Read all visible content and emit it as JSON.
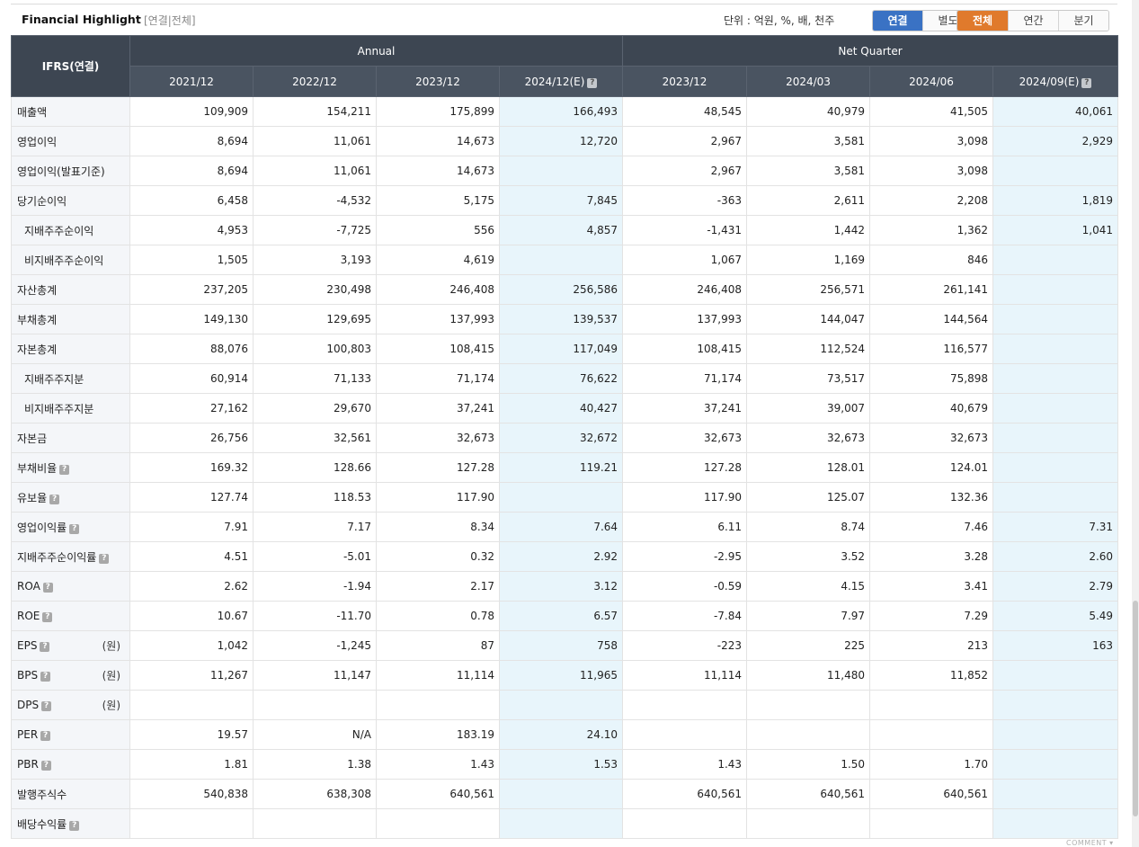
{
  "header": {
    "title": "Financial Highlight",
    "subtitle": "[연결|전체]",
    "unit": "단위 : 억원, %, 배, 천주",
    "scope_buttons": [
      "연결",
      "별도"
    ],
    "period_buttons": [
      "전체",
      "연간",
      "분기"
    ]
  },
  "table": {
    "corner": "IFRS(연결)",
    "group_annual": "Annual",
    "group_quarter": "Net Quarter",
    "columns": [
      "2021/12",
      "2022/12",
      "2023/12",
      "2024/12(E)",
      "2023/12",
      "2024/03",
      "2024/06",
      "2024/09(E)"
    ],
    "rows": [
      {
        "label": "매출액",
        "values": [
          "109,909",
          "154,211",
          "175,899",
          "166,493",
          "48,545",
          "40,979",
          "41,505",
          "40,061"
        ]
      },
      {
        "label": "영업이익",
        "values": [
          "8,694",
          "11,061",
          "14,673",
          "12,720",
          "2,967",
          "3,581",
          "3,098",
          "2,929"
        ]
      },
      {
        "label": "영업이익(발표기준)",
        "values": [
          "8,694",
          "11,061",
          "14,673",
          "",
          "2,967",
          "3,581",
          "3,098",
          ""
        ]
      },
      {
        "label": "당기순이익",
        "values": [
          "6,458",
          "-4,532",
          "5,175",
          "7,845",
          "-363",
          "2,611",
          "2,208",
          "1,819"
        ]
      },
      {
        "label": "지배주주순이익",
        "indent": true,
        "values": [
          "4,953",
          "-7,725",
          "556",
          "4,857",
          "-1,431",
          "1,442",
          "1,362",
          "1,041"
        ]
      },
      {
        "label": "비지배주주순이익",
        "indent": true,
        "values": [
          "1,505",
          "3,193",
          "4,619",
          "",
          "1,067",
          "1,169",
          "846",
          ""
        ]
      },
      {
        "label": "자산총계",
        "values": [
          "237,205",
          "230,498",
          "246,408",
          "256,586",
          "246,408",
          "256,571",
          "261,141",
          ""
        ]
      },
      {
        "label": "부채총계",
        "values": [
          "149,130",
          "129,695",
          "137,993",
          "139,537",
          "137,993",
          "144,047",
          "144,564",
          ""
        ]
      },
      {
        "label": "자본총계",
        "values": [
          "88,076",
          "100,803",
          "108,415",
          "117,049",
          "108,415",
          "112,524",
          "116,577",
          ""
        ]
      },
      {
        "label": "지배주주지분",
        "indent": true,
        "values": [
          "60,914",
          "71,133",
          "71,174",
          "76,622",
          "71,174",
          "73,517",
          "75,898",
          ""
        ]
      },
      {
        "label": "비지배주주지분",
        "indent": true,
        "values": [
          "27,162",
          "29,670",
          "37,241",
          "40,427",
          "37,241",
          "39,007",
          "40,679",
          ""
        ]
      },
      {
        "label": "자본금",
        "values": [
          "26,756",
          "32,561",
          "32,673",
          "32,672",
          "32,673",
          "32,673",
          "32,673",
          ""
        ]
      },
      {
        "label": "부채비율",
        "help": true,
        "values": [
          "169.32",
          "128.66",
          "127.28",
          "119.21",
          "127.28",
          "128.01",
          "124.01",
          ""
        ]
      },
      {
        "label": "유보율",
        "help": true,
        "values": [
          "127.74",
          "118.53",
          "117.90",
          "",
          "117.90",
          "125.07",
          "132.36",
          ""
        ]
      },
      {
        "label": "영업이익률",
        "help": true,
        "values": [
          "7.91",
          "7.17",
          "8.34",
          "7.64",
          "6.11",
          "8.74",
          "7.46",
          "7.31"
        ]
      },
      {
        "label": "지배주주순이익률",
        "help": true,
        "values": [
          "4.51",
          "-5.01",
          "0.32",
          "2.92",
          "-2.95",
          "3.52",
          "3.28",
          "2.60"
        ]
      },
      {
        "label": "ROA",
        "help": true,
        "values": [
          "2.62",
          "-1.94",
          "2.17",
          "3.12",
          "-0.59",
          "4.15",
          "3.41",
          "2.79"
        ]
      },
      {
        "label": "ROE",
        "help": true,
        "values": [
          "10.67",
          "-11.70",
          "0.78",
          "6.57",
          "-7.84",
          "7.97",
          "7.29",
          "5.49"
        ]
      },
      {
        "label": "EPS",
        "help": true,
        "unit": "(원)",
        "values": [
          "1,042",
          "-1,245",
          "87",
          "758",
          "-223",
          "225",
          "213",
          "163"
        ]
      },
      {
        "label": "BPS",
        "help": true,
        "unit": "(원)",
        "values": [
          "11,267",
          "11,147",
          "11,114",
          "11,965",
          "11,114",
          "11,480",
          "11,852",
          ""
        ]
      },
      {
        "label": "DPS",
        "help": true,
        "unit": "(원)",
        "values": [
          "",
          "",
          "",
          "",
          "",
          "",
          "",
          ""
        ]
      },
      {
        "label": "PER",
        "help": true,
        "values": [
          "19.57",
          "N/A",
          "183.19",
          "24.10",
          "",
          "",
          "",
          ""
        ]
      },
      {
        "label": "PBR",
        "help": true,
        "values": [
          "1.81",
          "1.38",
          "1.43",
          "1.53",
          "1.43",
          "1.50",
          "1.70",
          ""
        ]
      },
      {
        "label": "발행주식수",
        "values": [
          "540,838",
          "638,308",
          "640,561",
          "",
          "640,561",
          "640,561",
          "640,561",
          ""
        ]
      },
      {
        "label": "배당수익률",
        "help": true,
        "values": [
          "",
          "",
          "",
          "",
          "",
          "",
          "",
          ""
        ]
      }
    ]
  },
  "footer": {
    "comment": "COMMENT"
  },
  "colors": {
    "header_bg": "#3d4652",
    "estimate_bg": "#e8f5fb",
    "negative": "#d21d1d",
    "active_scope": "#3a72c4",
    "active_period": "#e07a2c"
  }
}
